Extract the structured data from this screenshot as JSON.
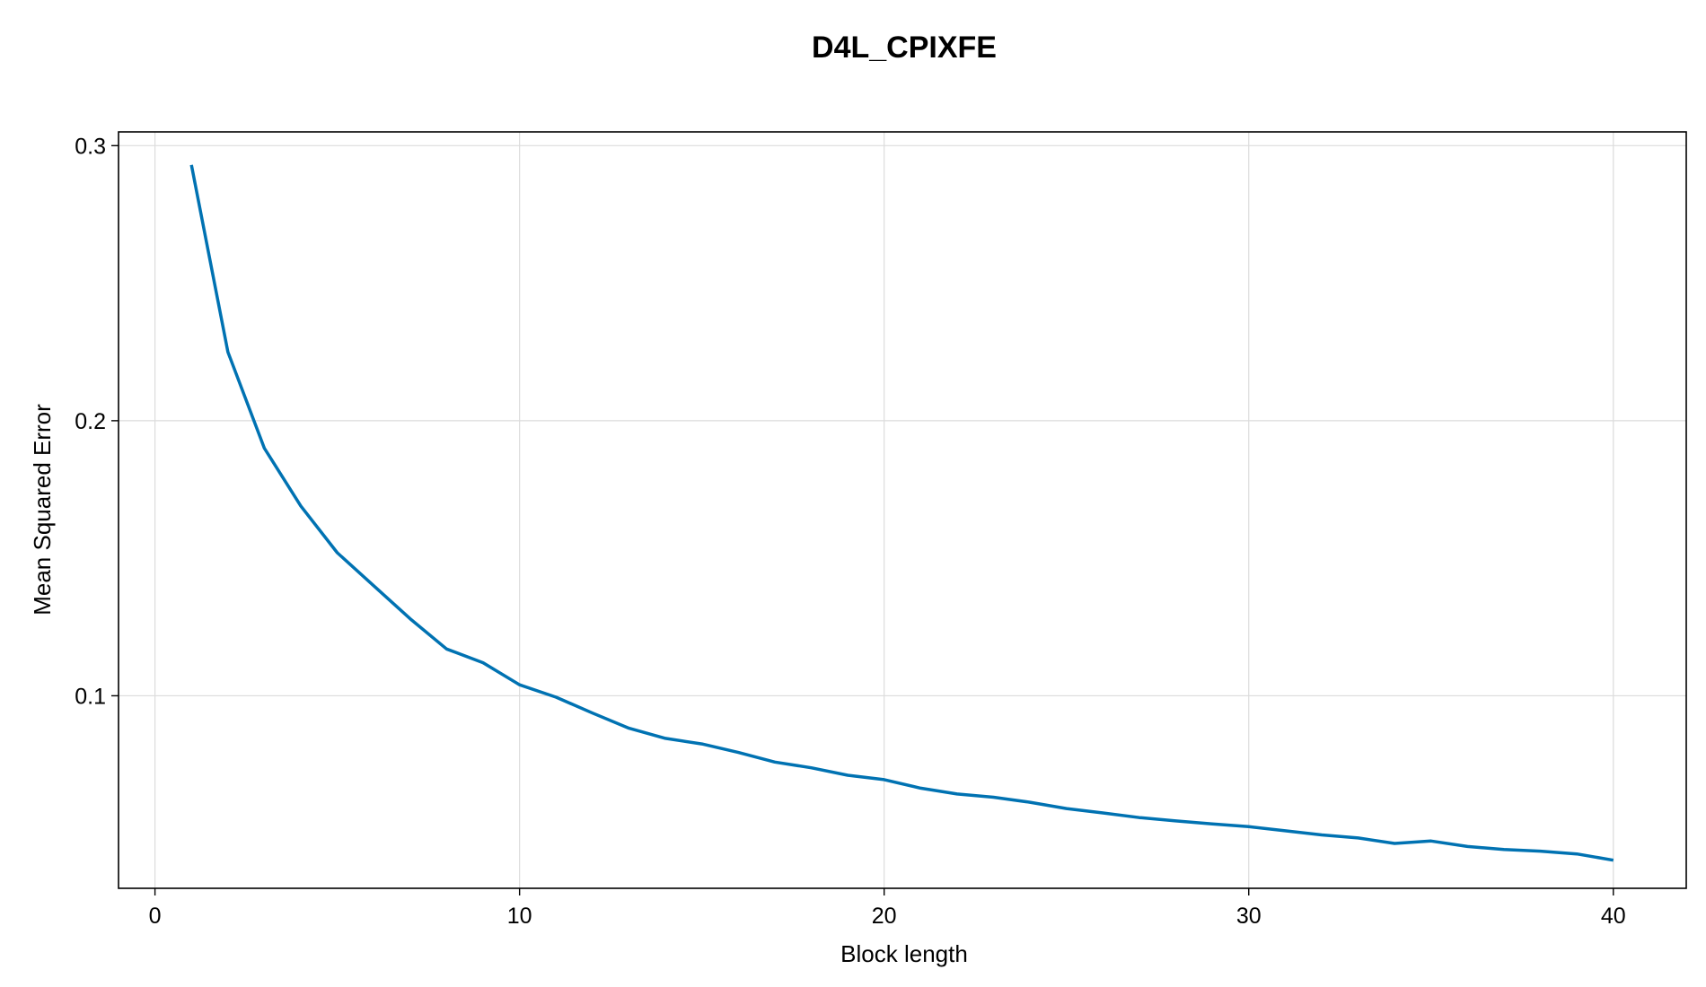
{
  "chart_data": {
    "type": "line",
    "title": "D4L_CPIXFE",
    "xlabel": "Block length",
    "ylabel": "Mean Squared Error",
    "xlim": [
      -1,
      42
    ],
    "ylim": [
      0.03,
      0.305
    ],
    "xticks": [
      0,
      10,
      20,
      30,
      40
    ],
    "yticks": [
      0.1,
      0.2,
      0.3
    ],
    "ytick_labels": [
      "0.1",
      "0.2",
      "0.3"
    ],
    "grid": true,
    "series": [
      {
        "color": "#0072b2",
        "x": [
          1,
          2,
          3,
          4,
          5,
          6,
          7,
          8,
          9,
          10,
          11,
          12,
          13,
          14,
          15,
          16,
          17,
          18,
          19,
          20,
          21,
          22,
          23,
          24,
          25,
          26,
          27,
          28,
          29,
          30,
          31,
          32,
          33,
          34,
          35,
          36,
          37,
          38,
          39,
          40
        ],
        "values": [
          0.293,
          0.225,
          0.19,
          0.169,
          0.152,
          0.14,
          0.128,
          0.117,
          0.112,
          0.104,
          0.0995,
          0.0937,
          0.0882,
          0.0845,
          0.0825,
          0.0794,
          0.0759,
          0.0738,
          0.0711,
          0.0695,
          0.0664,
          0.0643,
          0.0631,
          0.0613,
          0.059,
          0.0574,
          0.0557,
          0.0545,
          0.0534,
          0.0524,
          0.0509,
          0.0494,
          0.0483,
          0.0463,
          0.0472,
          0.0452,
          0.0441,
          0.0435,
          0.0425,
          0.0402
        ]
      }
    ]
  }
}
